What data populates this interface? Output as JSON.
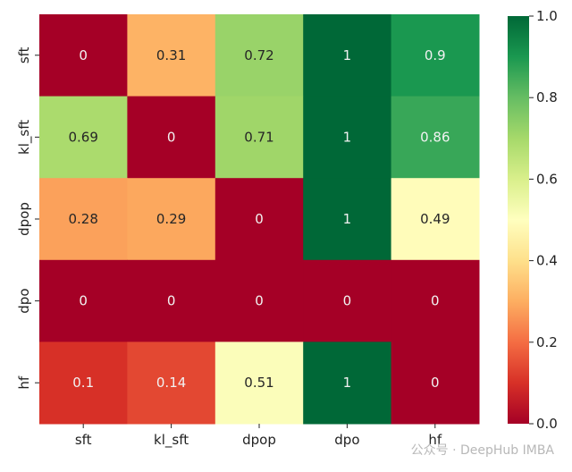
{
  "chart_data": {
    "type": "heatmap",
    "rows": [
      "sft",
      "kl_sft",
      "dpop",
      "dpo",
      "hf"
    ],
    "columns": [
      "sft",
      "kl_sft",
      "dpop",
      "dpo",
      "hf"
    ],
    "values": [
      [
        0,
        0.31,
        0.72,
        1,
        0.9
      ],
      [
        0.69,
        0,
        0.71,
        1,
        0.86
      ],
      [
        0.28,
        0.29,
        0,
        1,
        0.49
      ],
      [
        0,
        0,
        0,
        0,
        0
      ],
      [
        0.1,
        0.14,
        0.51,
        1,
        0
      ]
    ],
    "colormap": "RdYlGn",
    "vmin": 0.0,
    "vmax": 1.0,
    "colorbar_ticks": [
      "0.0",
      "0.2",
      "0.4",
      "0.6",
      "0.8",
      "1.0"
    ],
    "colorbar_tick_values": [
      0.0,
      0.2,
      0.4,
      0.6,
      0.8,
      1.0
    ]
  },
  "watermark": {
    "text": "公众号 · DeepHub IMBA"
  }
}
